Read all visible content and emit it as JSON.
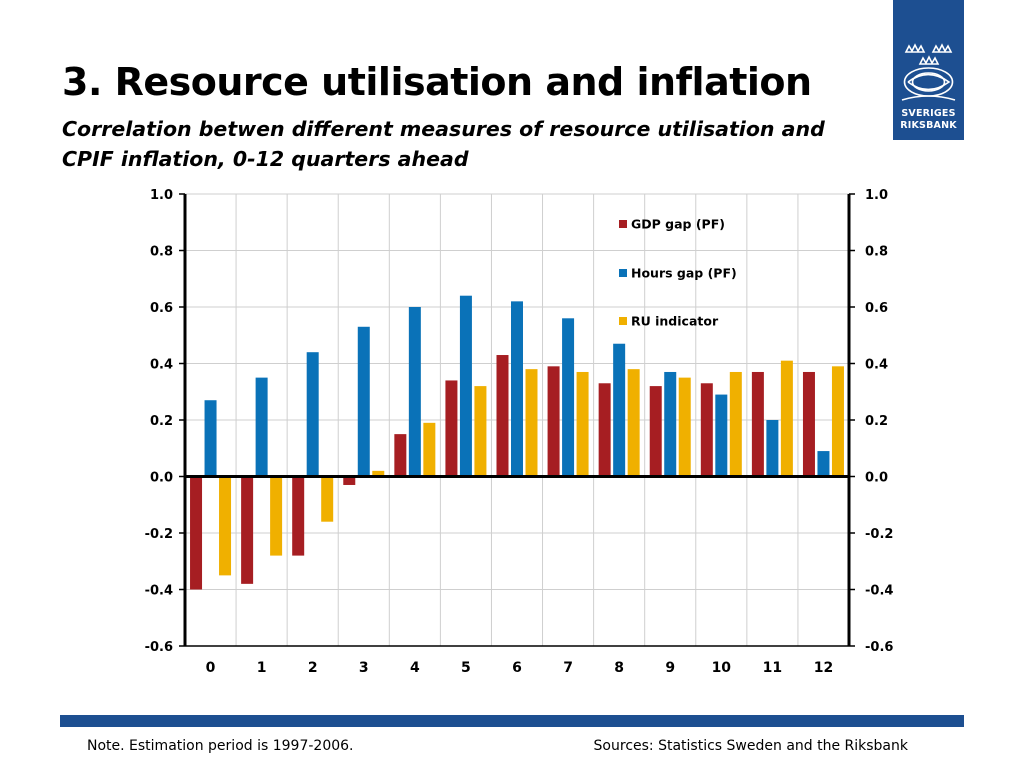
{
  "slide": {
    "title": "3. Resource utilisation and inflation",
    "subtitle": "Correlation betwen different measures of resource utilisation and CPIF inflation, 0-12 quarters ahead",
    "logo_line1": "SVERIGES",
    "logo_line2": "RIKSBANK",
    "note": "Note. Estimation period is 1997-2006.",
    "source": "Sources: Statistics Sweden and the Riksbank"
  },
  "colors": {
    "brand": "#1d4f91",
    "gdp": "#a61e22",
    "hours": "#0a72b8",
    "ru": "#f0b000"
  },
  "chart_data": {
    "type": "bar",
    "categories": [
      "0",
      "1",
      "2",
      "3",
      "4",
      "5",
      "6",
      "7",
      "8",
      "9",
      "10",
      "11",
      "12"
    ],
    "ylim": [
      -0.6,
      1.0
    ],
    "yticks": [
      "1.0",
      "0.8",
      "0.6",
      "0.4",
      "0.2",
      "0.0",
      "-0.2",
      "-0.4",
      "-0.6"
    ],
    "grid": true,
    "legend_position": "top-right",
    "series": [
      {
        "name": "GDP gap (PF)",
        "values": [
          -0.4,
          -0.38,
          -0.28,
          -0.03,
          0.15,
          0.34,
          0.43,
          0.39,
          0.33,
          0.32,
          0.33,
          0.37,
          0.37
        ]
      },
      {
        "name": "Hours gap (PF)",
        "values": [
          0.27,
          0.35,
          0.44,
          0.53,
          0.6,
          0.64,
          0.62,
          0.56,
          0.47,
          0.37,
          0.29,
          0.2,
          0.09
        ]
      },
      {
        "name": "RU indicator",
        "values": [
          -0.35,
          -0.28,
          -0.16,
          0.02,
          0.19,
          0.32,
          0.38,
          0.37,
          0.38,
          0.35,
          0.37,
          0.41,
          0.39
        ]
      }
    ]
  }
}
